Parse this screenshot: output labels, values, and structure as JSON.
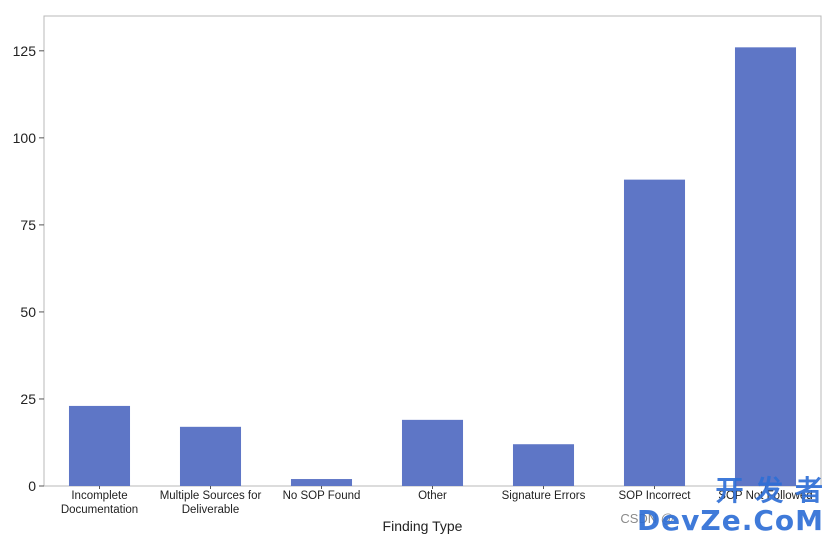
{
  "chart_data": {
    "type": "bar",
    "categories": [
      [
        "Incomplete",
        "Documentation"
      ],
      [
        "Multiple Sources for",
        "Deliverable"
      ],
      [
        "No SOP Found"
      ],
      [
        "Other"
      ],
      [
        "Signature Errors"
      ],
      [
        "SOP Incorrect"
      ],
      [
        "SOP Not Followed"
      ]
    ],
    "values": [
      23,
      17,
      2,
      19,
      12,
      88,
      126
    ],
    "xlabel": "Finding Type",
    "ylabel": "",
    "ylim": [
      0,
      135
    ],
    "yticks": [
      0,
      25,
      50,
      75,
      100,
      125
    ],
    "grid": false,
    "bar_color": "#5e76c6"
  },
  "watermark": {
    "brand": "开 发 者",
    "site": "DevZe.CoM",
    "source": "CSDN @"
  }
}
